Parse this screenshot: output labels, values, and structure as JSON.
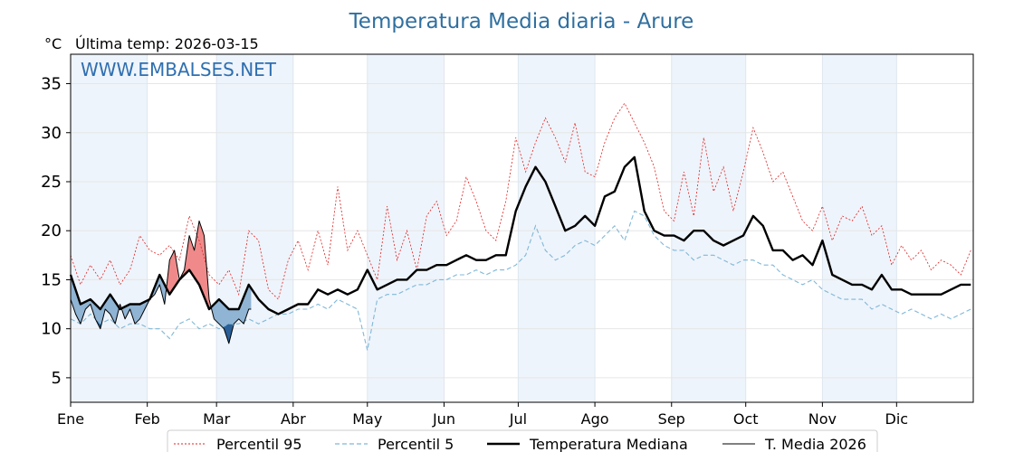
{
  "chart_data": {
    "type": "line",
    "title": "Temperatura Media diaria - Arure",
    "unit": "°C",
    "last_temp": "Última temp: 2026-03-15",
    "watermark": "WWW.EMBALSES.NET",
    "months": [
      "Ene",
      "Feb",
      "Mar",
      "Abr",
      "May",
      "Jun",
      "Jul",
      "Ago",
      "Sep",
      "Oct",
      "Nov",
      "Dic"
    ],
    "month_start_day": [
      0,
      31,
      59,
      90,
      120,
      151,
      181,
      212,
      243,
      273,
      304,
      334
    ],
    "days_in_year": 365,
    "yticks": [
      5,
      10,
      15,
      20,
      25,
      30,
      35
    ],
    "ylim": [
      2.5,
      38
    ],
    "grid": true,
    "legend_placement": "bottom",
    "colors": {
      "p95": "#e02020",
      "p5": "#7fb8d8",
      "median": "#000000",
      "media2026": "#000000",
      "above": "#f08a8a",
      "below_light": "#8fb4d4",
      "below_dark": "#2a5f98",
      "month_band": "#eef4fb",
      "title": "#2f6f9f"
    },
    "series": [
      {
        "key": "p95",
        "name": "Percentil 95",
        "x": [
          0,
          4,
          8,
          12,
          16,
          20,
          24,
          28,
          32,
          36,
          40,
          44,
          48,
          52,
          56,
          60,
          64,
          68,
          72,
          76,
          80,
          84,
          88,
          92,
          96,
          100,
          104,
          108,
          112,
          116,
          120,
          124,
          128,
          132,
          136,
          140,
          144,
          148,
          152,
          156,
          160,
          164,
          168,
          172,
          176,
          180,
          184,
          188,
          192,
          196,
          200,
          204,
          208,
          212,
          216,
          220,
          224,
          228,
          232,
          236,
          240,
          244,
          248,
          252,
          256,
          260,
          264,
          268,
          272,
          276,
          280,
          284,
          288,
          292,
          296,
          300,
          304,
          308,
          312,
          316,
          320,
          324,
          328,
          332,
          336,
          340,
          344,
          348,
          352,
          356,
          360,
          364
        ],
        "y": [
          17.5,
          14.5,
          16.5,
          15.0,
          17.0,
          14.5,
          16.0,
          19.5,
          18.0,
          17.5,
          18.5,
          17.0,
          21.5,
          19.0,
          15.5,
          14.5,
          16.0,
          13.5,
          20.0,
          19.0,
          14.0,
          13.0,
          17.0,
          19.0,
          16.0,
          20.0,
          16.5,
          24.5,
          18.0,
          20.0,
          17.5,
          15.0,
          22.5,
          17.0,
          20.0,
          16.0,
          21.5,
          23.0,
          19.5,
          21.0,
          25.5,
          23.0,
          20.0,
          19.0,
          23.0,
          29.5,
          26.0,
          29.0,
          31.5,
          29.5,
          27.0,
          31.0,
          26.0,
          25.5,
          29.0,
          31.5,
          33.0,
          31.0,
          29.0,
          26.5,
          22.0,
          21.0,
          26.0,
          21.5,
          29.5,
          24.0,
          26.5,
          22.0,
          26.0,
          30.5,
          28.0,
          25.0,
          26.0,
          23.5,
          21.0,
          20.0,
          22.5,
          19.0,
          21.5,
          21.0,
          22.5,
          19.5,
          20.5,
          16.5,
          18.5,
          17.0,
          18.0,
          16.0,
          17.0,
          16.5,
          15.5,
          18.0
        ]
      },
      {
        "key": "p5",
        "name": "Percentil 5",
        "x": [
          0,
          4,
          8,
          12,
          16,
          20,
          24,
          28,
          32,
          36,
          40,
          44,
          48,
          52,
          56,
          60,
          64,
          68,
          72,
          76,
          80,
          84,
          88,
          92,
          96,
          100,
          104,
          108,
          112,
          116,
          120,
          124,
          128,
          132,
          136,
          140,
          144,
          148,
          152,
          156,
          160,
          164,
          168,
          172,
          176,
          180,
          184,
          188,
          192,
          196,
          200,
          204,
          208,
          212,
          216,
          220,
          224,
          228,
          232,
          236,
          240,
          244,
          248,
          252,
          256,
          260,
          264,
          268,
          272,
          276,
          280,
          284,
          288,
          292,
          296,
          300,
          304,
          308,
          312,
          316,
          320,
          324,
          328,
          332,
          336,
          340,
          344,
          348,
          352,
          356,
          360,
          364
        ],
        "y": [
          11.0,
          10.5,
          11.5,
          10.5,
          11.0,
          10.0,
          10.5,
          10.5,
          10.0,
          10.0,
          9.0,
          10.5,
          11.0,
          10.0,
          10.5,
          10.0,
          10.5,
          10.5,
          11.0,
          10.5,
          11.0,
          11.5,
          11.5,
          12.0,
          12.0,
          12.5,
          12.0,
          13.0,
          12.5,
          12.0,
          7.8,
          13.0,
          13.5,
          13.5,
          14.0,
          14.5,
          14.5,
          15.0,
          15.0,
          15.5,
          15.5,
          16.0,
          15.5,
          16.0,
          16.0,
          16.5,
          17.5,
          20.5,
          18.0,
          17.0,
          17.5,
          18.5,
          19.0,
          18.5,
          19.5,
          20.5,
          19.0,
          22.0,
          21.5,
          19.5,
          18.5,
          18.0,
          18.0,
          17.0,
          17.5,
          17.5,
          17.0,
          16.5,
          17.0,
          17.0,
          16.5,
          16.5,
          15.5,
          15.0,
          14.5,
          15.0,
          14.0,
          13.5,
          13.0,
          13.0,
          13.0,
          12.0,
          12.5,
          12.0,
          11.5,
          12.0,
          11.5,
          11.0,
          11.5,
          11.0,
          11.5,
          12.0
        ]
      },
      {
        "key": "median",
        "name": "Temperatura Mediana",
        "x": [
          0,
          4,
          8,
          12,
          16,
          20,
          24,
          28,
          32,
          36,
          40,
          44,
          48,
          52,
          56,
          60,
          64,
          68,
          72,
          76,
          80,
          84,
          88,
          92,
          96,
          100,
          104,
          108,
          112,
          116,
          120,
          124,
          128,
          132,
          136,
          140,
          144,
          148,
          152,
          156,
          160,
          164,
          168,
          172,
          176,
          180,
          184,
          188,
          192,
          196,
          200,
          204,
          208,
          212,
          216,
          220,
          224,
          228,
          232,
          236,
          240,
          244,
          248,
          252,
          256,
          260,
          264,
          268,
          272,
          276,
          280,
          284,
          288,
          292,
          296,
          300,
          304,
          308,
          312,
          316,
          320,
          324,
          328,
          332,
          336,
          340,
          344,
          348,
          352,
          356,
          360,
          364
        ],
        "y": [
          15.5,
          12.5,
          13.0,
          12.0,
          13.5,
          12.0,
          12.5,
          12.5,
          13.0,
          15.5,
          13.5,
          15.0,
          16.0,
          14.5,
          12.0,
          13.0,
          12.0,
          12.0,
          14.5,
          13.0,
          12.0,
          11.5,
          12.0,
          12.5,
          12.5,
          14.0,
          13.5,
          14.0,
          13.5,
          14.0,
          16.0,
          14.0,
          14.5,
          15.0,
          15.0,
          16.0,
          16.0,
          16.5,
          16.5,
          17.0,
          17.5,
          17.0,
          17.0,
          17.5,
          17.5,
          22.0,
          24.5,
          26.5,
          25.0,
          22.5,
          20.0,
          20.5,
          21.5,
          20.5,
          23.5,
          24.0,
          26.5,
          27.5,
          22.0,
          20.0,
          19.5,
          19.5,
          19.0,
          20.0,
          20.0,
          19.0,
          18.5,
          19.0,
          19.5,
          21.5,
          20.5,
          18.0,
          18.0,
          17.0,
          17.5,
          16.5,
          19.0,
          15.5,
          15.0,
          14.5,
          14.5,
          14.0,
          15.5,
          14.0,
          14.0,
          13.5,
          13.5,
          13.5,
          13.5,
          14.0,
          14.5,
          14.5
        ]
      },
      {
        "key": "media2026",
        "name": "T. Media 2026",
        "x": [
          0,
          2,
          4,
          6,
          8,
          10,
          12,
          14,
          16,
          18,
          20,
          22,
          24,
          26,
          28,
          30,
          32,
          34,
          36,
          38,
          40,
          42,
          44,
          46,
          48,
          50,
          52,
          54,
          56,
          58,
          60,
          62,
          64,
          66,
          68,
          70,
          72,
          73
        ],
        "y": [
          13.0,
          11.5,
          10.5,
          12.0,
          12.5,
          11.0,
          10.0,
          12.0,
          11.5,
          10.5,
          12.5,
          11.0,
          12.0,
          10.5,
          11.0,
          12.0,
          13.0,
          13.5,
          14.5,
          12.5,
          17.0,
          18.0,
          15.0,
          16.0,
          19.5,
          18.0,
          21.0,
          19.5,
          13.0,
          11.0,
          10.5,
          10.0,
          8.5,
          10.5,
          11.0,
          10.5,
          12.0,
          12.0
        ]
      }
    ],
    "legend": {
      "p95": "Percentil 95",
      "p5": "Percentil 5",
      "median": "Temperatura Mediana",
      "media2026": "T. Media 2026"
    }
  }
}
